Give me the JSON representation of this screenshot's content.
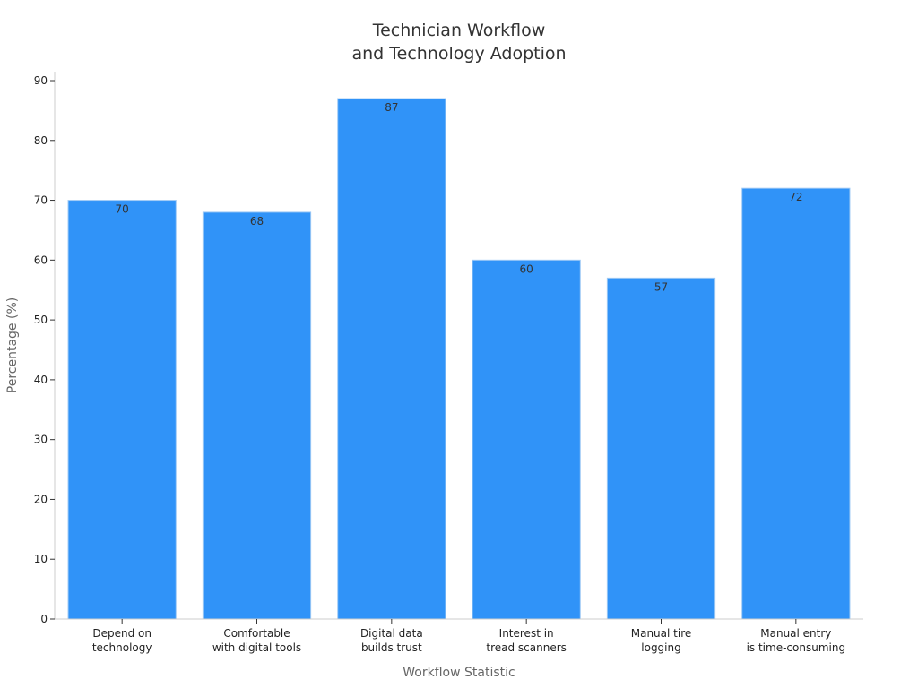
{
  "chart_data": {
    "type": "bar",
    "title": [
      "Technician Workflow",
      "and Technology Adoption"
    ],
    "xlabel": "Workflow Statistic",
    "ylabel": "Percentage (%)",
    "categories": [
      [
        "Depend on",
        "technology"
      ],
      [
        "Comfortable",
        "with digital tools"
      ],
      [
        "Digital data",
        "builds trust"
      ],
      [
        "Interest in",
        "tread scanners"
      ],
      [
        "Manual tire",
        "logging"
      ],
      [
        "Manual entry",
        "is time-consuming"
      ]
    ],
    "values": [
      70,
      68,
      87,
      60,
      57,
      72
    ],
    "ylim": [
      0,
      90
    ],
    "yticks": [
      0,
      10,
      20,
      30,
      40,
      50,
      60,
      70,
      80,
      90
    ],
    "bar_color": "#3093f8",
    "grid": false,
    "legend": "none"
  }
}
